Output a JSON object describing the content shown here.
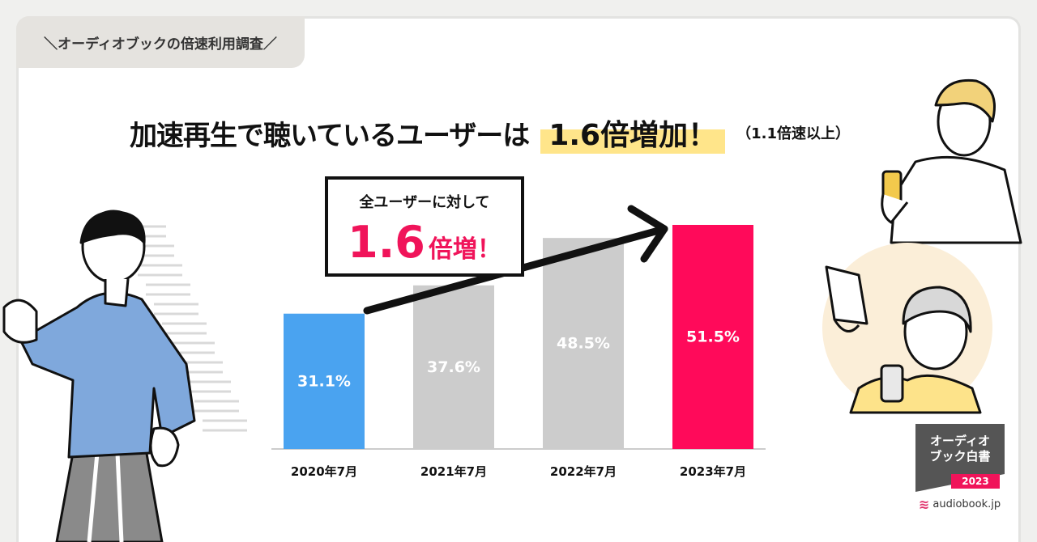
{
  "tag": {
    "label": "＼オーディオブックの倍速利用調査／"
  },
  "headline": {
    "main": "加速再生で聴いているユーザーは",
    "highlight": "1.6倍増加！",
    "note": "（1.1倍速以上）"
  },
  "callout": {
    "line1": "全ユーザーに対して",
    "big": "1.6",
    "small": "倍増！"
  },
  "colors": {
    "bar_2020": "#4aa3f0",
    "bar_gray": "#cccccc",
    "bar_2023": "#ff0a5a",
    "accent": "#f0145a",
    "highlight": "#ffe58a"
  },
  "chart_data": {
    "type": "bar",
    "title": "加速再生で聴いているユーザーは 1.6倍増加！",
    "categories": [
      "2020年7月",
      "2021年7月",
      "2022年7月",
      "2023年7月"
    ],
    "values": [
      31.1,
      37.6,
      48.5,
      51.5
    ],
    "value_labels": [
      "31.1%",
      "37.6%",
      "48.5%",
      "51.5%"
    ],
    "ylabel": "",
    "xlabel": "",
    "ylim": [
      0,
      51.5
    ],
    "grid": false
  },
  "badge": {
    "title_line1": "オーディオ",
    "title_line2": "ブック白書",
    "year": "2023"
  },
  "site": {
    "logo_icon": "audiobook-logo-icon",
    "url": "audiobook.jp"
  }
}
